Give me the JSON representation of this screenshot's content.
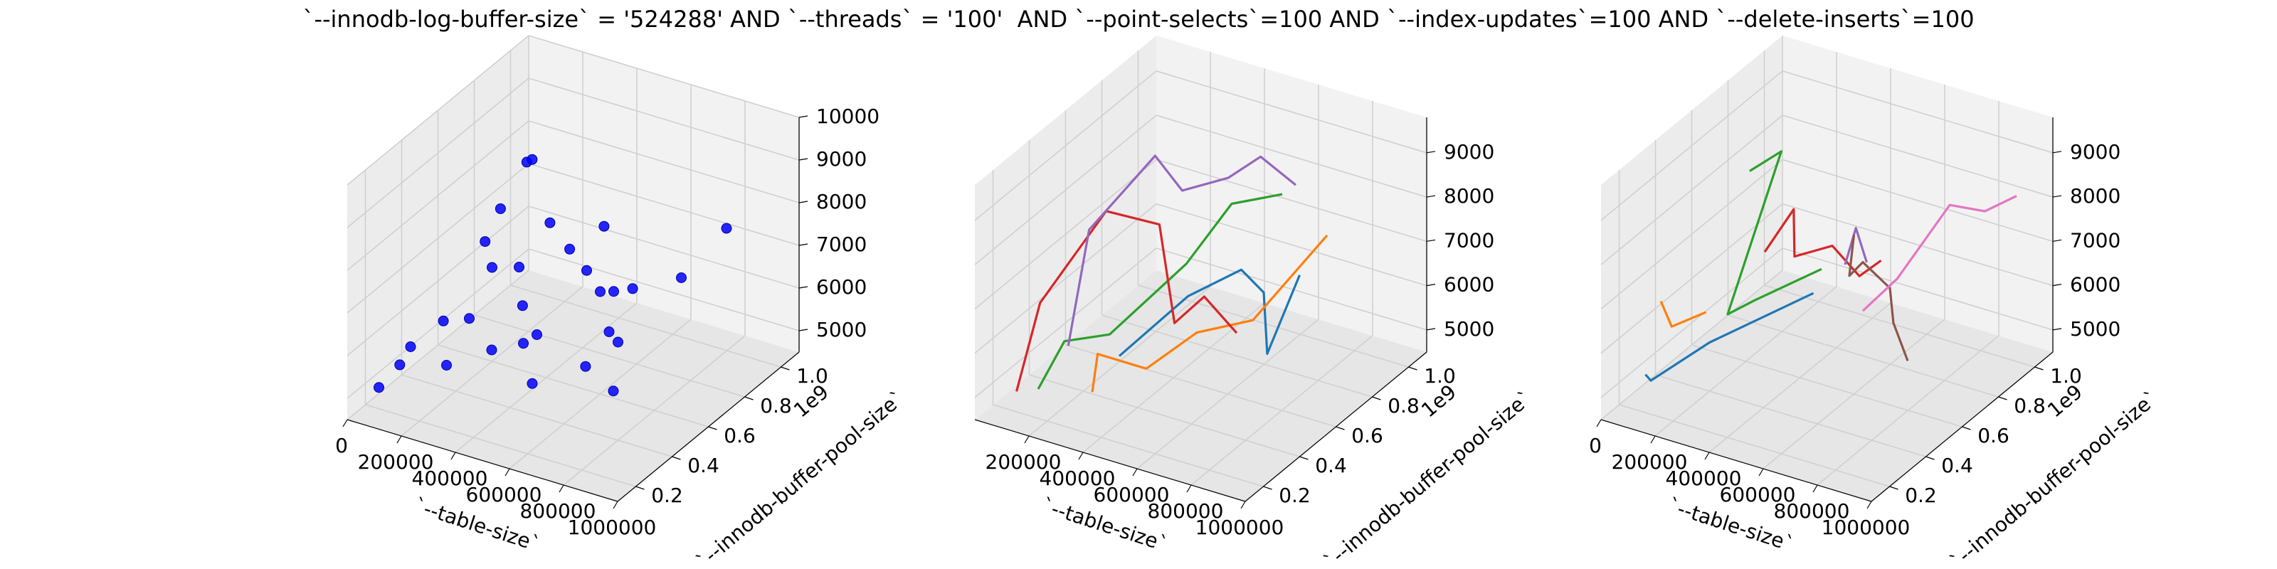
{
  "title": "`--innodb-log-buffer-size` = '524288' AND `--threads` = '100'  AND `--point-selects`=100 AND `--index-updates`=100 AND `--delete-inserts`=100",
  "chart_data": [
    {
      "type": "scatter3d",
      "xlabel": "`--table-size`",
      "ylabel": "`--innodb-buffer-pool-size`",
      "zlabel": "",
      "x_ticks": [
        "0",
        "200000",
        "400000",
        "600000",
        "800000",
        "1000000"
      ],
      "y_ticks": [
        "0.2",
        "0.4",
        "0.6",
        "0.8",
        "1.0"
      ],
      "y_offset_label": "1e9",
      "z_ticks": [
        "5000",
        "6000",
        "7000",
        "8000",
        "9000",
        "10000"
      ],
      "xlim": [
        0,
        1000000
      ],
      "ylim": [
        0.1,
        1.1
      ],
      "zlim": [
        4500,
        10000
      ],
      "color": "#0000ff",
      "points": [
        {
          "x": 50000,
          "y": 0.2,
          "z": 5000
        },
        {
          "x": 60000,
          "y": 0.3,
          "z": 5200
        },
        {
          "x": 20000,
          "y": 0.6,
          "z": 5100
        },
        {
          "x": 100000,
          "y": 0.3,
          "z": 5700
        },
        {
          "x": 40000,
          "y": 0.8,
          "z": 6300
        },
        {
          "x": 30000,
          "y": 0.9,
          "z": 6700
        },
        {
          "x": 60000,
          "y": 1.0,
          "z": 7500
        },
        {
          "x": 80000,
          "y": 1.0,
          "z": 7600
        },
        {
          "x": 300000,
          "y": 0.2,
          "z": 6000
        },
        {
          "x": 250000,
          "y": 0.4,
          "z": 6300
        },
        {
          "x": 200000,
          "y": 0.6,
          "z": 6700
        },
        {
          "x": 300000,
          "y": 0.6,
          "z": 6900
        },
        {
          "x": 280000,
          "y": 0.8,
          "z": 7200
        },
        {
          "x": 400000,
          "y": 0.3,
          "z": 6200
        },
        {
          "x": 380000,
          "y": 0.5,
          "z": 6500
        },
        {
          "x": 450000,
          "y": 0.4,
          "z": 6100
        },
        {
          "x": 500000,
          "y": 0.4,
          "z": 6400
        },
        {
          "x": 420000,
          "y": 0.7,
          "z": 7200
        },
        {
          "x": 480000,
          "y": 0.8,
          "z": 7500
        },
        {
          "x": 550000,
          "y": 0.6,
          "z": 7300
        },
        {
          "x": 600000,
          "y": 0.6,
          "z": 6900
        },
        {
          "x": 650000,
          "y": 0.6,
          "z": 7000
        },
        {
          "x": 700000,
          "y": 0.5,
          "z": 6500
        },
        {
          "x": 680000,
          "y": 0.4,
          "z": 6000
        },
        {
          "x": 550000,
          "y": 0.3,
          "z": 5700
        },
        {
          "x": 720000,
          "y": 0.6,
          "z": 7200
        },
        {
          "x": 800000,
          "y": 0.4,
          "z": 6800
        },
        {
          "x": 900000,
          "y": 0.6,
          "z": 7800
        },
        {
          "x": 850000,
          "y": 0.3,
          "z": 6100
        },
        {
          "x": 1000000,
          "y": 0.7,
          "z": 8800
        }
      ]
    },
    {
      "type": "line3d",
      "xlabel": "`--table-size`",
      "ylabel": "`--innodb-buffer-pool-size`",
      "zlabel": "",
      "x_ticks": [
        "200000",
        "400000",
        "600000",
        "800000",
        "1000000"
      ],
      "y_ticks": [
        "0.2",
        "0.4",
        "0.6",
        "0.8",
        "1.0"
      ],
      "y_offset_label": "1e9",
      "z_ticks": [
        "5000",
        "6000",
        "7000",
        "8000",
        "9000"
      ],
      "xlim": [
        0,
        1000000
      ],
      "ylim": [
        0.1,
        1.1
      ],
      "zlim": [
        4500,
        9800
      ],
      "series": [
        {
          "color": "#1f77b4",
          "points": [
            {
              "x": 400000,
              "y": 0.3,
              "z": 6000
            },
            {
              "x": 520000,
              "y": 0.5,
              "z": 6900
            },
            {
              "x": 650000,
              "y": 0.6,
              "z": 7400
            },
            {
              "x": 800000,
              "y": 0.5,
              "z": 7500
            },
            {
              "x": 880000,
              "y": 0.4,
              "z": 6600
            },
            {
              "x": 1000000,
              "y": 0.4,
              "z": 8600
            }
          ]
        },
        {
          "color": "#ff7f0e",
          "points": [
            {
              "x": 300000,
              "y": 0.3,
              "z": 5000
            },
            {
              "x": 320000,
              "y": 0.3,
              "z": 5900
            },
            {
              "x": 500000,
              "y": 0.3,
              "z": 5900
            },
            {
              "x": 620000,
              "y": 0.4,
              "z": 6600
            },
            {
              "x": 760000,
              "y": 0.5,
              "z": 6800
            },
            {
              "x": 900000,
              "y": 0.7,
              "z": 8300
            }
          ]
        },
        {
          "color": "#2ca02c",
          "points": [
            {
              "x": 100000,
              "y": 0.3,
              "z": 4700
            },
            {
              "x": 130000,
              "y": 0.4,
              "z": 5500
            },
            {
              "x": 230000,
              "y": 0.5,
              "z": 5500
            },
            {
              "x": 380000,
              "y": 0.7,
              "z": 6700
            },
            {
              "x": 480000,
              "y": 0.8,
              "z": 7900
            },
            {
              "x": 600000,
              "y": 0.9,
              "z": 8000
            }
          ]
        },
        {
          "color": "#d62728",
          "points": [
            {
              "x": 20000,
              "y": 0.3,
              "z": 4500
            },
            {
              "x": 40000,
              "y": 0.4,
              "z": 6200
            },
            {
              "x": 150000,
              "y": 0.6,
              "z": 7800
            },
            {
              "x": 280000,
              "y": 0.7,
              "z": 7400
            },
            {
              "x": 470000,
              "y": 0.5,
              "z": 6200
            },
            {
              "x": 580000,
              "y": 0.5,
              "z": 7000
            },
            {
              "x": 700000,
              "y": 0.5,
              "z": 6400
            }
          ]
        },
        {
          "color": "#9467bd",
          "points": [
            {
              "x": 10000,
              "y": 0.6,
              "z": 4500
            },
            {
              "x": 20000,
              "y": 0.7,
              "z": 6800
            },
            {
              "x": 130000,
              "y": 0.9,
              "z": 8000
            },
            {
              "x": 230000,
              "y": 0.9,
              "z": 7400
            },
            {
              "x": 400000,
              "y": 0.9,
              "z": 8000
            },
            {
              "x": 520000,
              "y": 0.9,
              "z": 8700
            },
            {
              "x": 650000,
              "y": 0.9,
              "z": 8300
            }
          ]
        }
      ]
    },
    {
      "type": "line3d",
      "xlabel": "`--table-size`",
      "ylabel": "`--innodb-buffer-pool-size`",
      "zlabel": "",
      "x_ticks": [
        "0",
        "200000",
        "400000",
        "600000",
        "800000",
        "1000000"
      ],
      "y_ticks": [
        "0.2",
        "0.4",
        "0.6",
        "0.8",
        "1.0"
      ],
      "y_offset_label": "1e9",
      "z_ticks": [
        "5000",
        "6000",
        "7000",
        "8000",
        "9000"
      ],
      "xlim": [
        0,
        1000000
      ],
      "ylim": [
        0.1,
        1.1
      ],
      "zlim": [
        4500,
        9800
      ],
      "series": [
        {
          "color": "#1f77b4",
          "points": [
            {
              "x": 30000,
              "y": 0.3,
              "z": 4900
            },
            {
              "x": 50000,
              "y": 0.3,
              "z": 4800
            },
            {
              "x": 200000,
              "y": 0.4,
              "z": 5600
            },
            {
              "x": 450000,
              "y": 0.6,
              "z": 6500
            }
          ]
        },
        {
          "color": "#ff7f0e",
          "points": [
            {
              "x": 20000,
              "y": 0.4,
              "z": 6200
            },
            {
              "x": 60000,
              "y": 0.4,
              "z": 5700
            },
            {
              "x": 120000,
              "y": 0.5,
              "z": 5800
            }
          ]
        },
        {
          "color": "#2ca02c",
          "points": [
            {
              "x": 80000,
              "y": 0.8,
              "z": 7900
            },
            {
              "x": 130000,
              "y": 0.9,
              "z": 8100
            },
            {
              "x": 200000,
              "y": 0.5,
              "z": 5900
            },
            {
              "x": 300000,
              "y": 0.5,
              "z": 6400
            },
            {
              "x": 480000,
              "y": 0.6,
              "z": 7100
            }
          ]
        },
        {
          "color": "#d62728",
          "points": [
            {
              "x": 270000,
              "y": 0.6,
              "z": 7100
            },
            {
              "x": 310000,
              "y": 0.7,
              "z": 7800
            },
            {
              "x": 380000,
              "y": 0.6,
              "z": 7200
            },
            {
              "x": 520000,
              "y": 0.6,
              "z": 7700
            },
            {
              "x": 620000,
              "y": 0.6,
              "z": 7200
            },
            {
              "x": 700000,
              "y": 0.6,
              "z": 7700
            }
          ]
        },
        {
          "color": "#9467bd",
          "points": [
            {
              "x": 500000,
              "y": 0.7,
              "z": 6900
            },
            {
              "x": 540000,
              "y": 0.7,
              "z": 7800
            },
            {
              "x": 580000,
              "y": 0.7,
              "z": 7100
            }
          ]
        },
        {
          "color": "#8c564b",
          "points": [
            {
              "x": 600000,
              "y": 0.6,
              "z": 8100
            },
            {
              "x": 650000,
              "y": 0.5,
              "z": 7600
            },
            {
              "x": 700000,
              "y": 0.5,
              "z": 8000
            },
            {
              "x": 800000,
              "y": 0.5,
              "z": 7600
            },
            {
              "x": 880000,
              "y": 0.4,
              "z": 7300
            },
            {
              "x": 1000000,
              "y": 0.3,
              "z": 7000
            }
          ]
        },
        {
          "color": "#e377c2",
          "points": [
            {
              "x": 700000,
              "y": 0.5,
              "z": 6900
            },
            {
              "x": 760000,
              "y": 0.6,
              "z": 7400
            },
            {
              "x": 820000,
              "y": 0.8,
              "z": 8500
            },
            {
              "x": 950000,
              "y": 0.8,
              "z": 8600
            },
            {
              "x": 1000000,
              "y": 0.9,
              "z": 8700
            }
          ]
        }
      ]
    }
  ]
}
